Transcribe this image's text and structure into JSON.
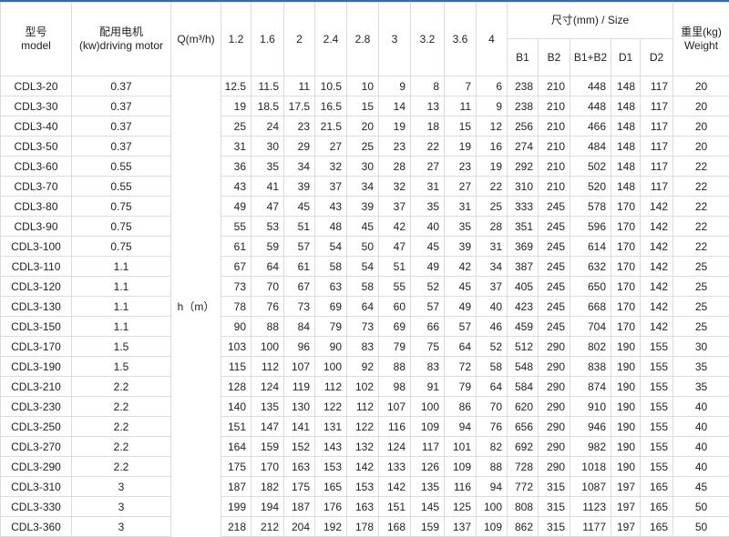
{
  "header": {
    "model_cn": "型号",
    "model_en": "model",
    "motor_cn": "配用电机",
    "motor_en": "(kw)driving motor",
    "flow_label": "Q(m³/h)",
    "flows": [
      "1.2",
      "1.6",
      "2",
      "2.4",
      "2.8",
      "3",
      "3.2",
      "3.6",
      "4"
    ],
    "size_label": "尺寸(mm) / Size",
    "size_cols": [
      "B1",
      "B2",
      "B1+B2",
      "D1",
      "D2"
    ],
    "weight_cn": "重里(kg)",
    "weight_en": "Weight",
    "head_label": "h（m）"
  },
  "rows": [
    [
      "CDL3-20",
      "0.37",
      "12.5",
      "11.5",
      "11",
      "10.5",
      "10",
      "9",
      "8",
      "7",
      "6",
      "238",
      "210",
      "448",
      "148",
      "117",
      "20"
    ],
    [
      "CDL3-30",
      "0.37",
      "19",
      "18.5",
      "17.5",
      "16.5",
      "15",
      "14",
      "13",
      "11",
      "9",
      "238",
      "210",
      "448",
      "148",
      "117",
      "20"
    ],
    [
      "CDL3-40",
      "0.37",
      "25",
      "24",
      "23",
      "21.5",
      "20",
      "19",
      "18",
      "15",
      "12",
      "256",
      "210",
      "466",
      "148",
      "117",
      "20"
    ],
    [
      "CDL3-50",
      "0.37",
      "31",
      "30",
      "29",
      "27",
      "25",
      "23",
      "22",
      "19",
      "16",
      "274",
      "210",
      "484",
      "148",
      "117",
      "20"
    ],
    [
      "CDL3-60",
      "0.55",
      "36",
      "35",
      "34",
      "32",
      "30",
      "28",
      "27",
      "23",
      "19",
      "292",
      "210",
      "502",
      "148",
      "117",
      "22"
    ],
    [
      "CDL3-70",
      "0.55",
      "43",
      "41",
      "39",
      "37",
      "34",
      "32",
      "31",
      "27",
      "22",
      "310",
      "210",
      "520",
      "148",
      "117",
      "22"
    ],
    [
      "CDL3-80",
      "0.75",
      "49",
      "47",
      "45",
      "43",
      "39",
      "37",
      "35",
      "31",
      "25",
      "333",
      "245",
      "578",
      "170",
      "142",
      "22"
    ],
    [
      "CDL3-90",
      "0.75",
      "55",
      "53",
      "51",
      "48",
      "45",
      "42",
      "40",
      "35",
      "28",
      "351",
      "245",
      "596",
      "170",
      "142",
      "22"
    ],
    [
      "CDL3-100",
      "0.75",
      "61",
      "59",
      "57",
      "54",
      "50",
      "47",
      "45",
      "39",
      "31",
      "369",
      "245",
      "614",
      "170",
      "142",
      "22"
    ],
    [
      "CDL3-110",
      "1.1",
      "67",
      "64",
      "61",
      "58",
      "54",
      "51",
      "49",
      "42",
      "34",
      "387",
      "245",
      "632",
      "170",
      "142",
      "25"
    ],
    [
      "CDL3-120",
      "1.1",
      "73",
      "70",
      "67",
      "63",
      "58",
      "55",
      "52",
      "45",
      "37",
      "405",
      "245",
      "650",
      "170",
      "142",
      "25"
    ],
    [
      "CDL3-130",
      "1.1",
      "78",
      "76",
      "73",
      "69",
      "64",
      "60",
      "57",
      "49",
      "40",
      "423",
      "245",
      "668",
      "170",
      "142",
      "25"
    ],
    [
      "CDL3-150",
      "1.1",
      "90",
      "88",
      "84",
      "79",
      "73",
      "69",
      "66",
      "57",
      "46",
      "459",
      "245",
      "704",
      "170",
      "142",
      "25"
    ],
    [
      "CDL3-170",
      "1.5",
      "103",
      "100",
      "96",
      "90",
      "83",
      "79",
      "75",
      "64",
      "52",
      "512",
      "290",
      "802",
      "190",
      "155",
      "30"
    ],
    [
      "CDL3-190",
      "1.5",
      "115",
      "112",
      "107",
      "100",
      "92",
      "88",
      "83",
      "72",
      "58",
      "548",
      "290",
      "838",
      "190",
      "155",
      "35"
    ],
    [
      "CDL3-210",
      "2.2",
      "128",
      "124",
      "119",
      "112",
      "102",
      "98",
      "91",
      "79",
      "64",
      "584",
      "290",
      "874",
      "190",
      "155",
      "35"
    ],
    [
      "CDL3-230",
      "2.2",
      "140",
      "135",
      "130",
      "122",
      "112",
      "107",
      "100",
      "86",
      "70",
      "620",
      "290",
      "910",
      "190",
      "155",
      "40"
    ],
    [
      "CDL3-250",
      "2.2",
      "151",
      "147",
      "141",
      "131",
      "122",
      "116",
      "109",
      "94",
      "76",
      "656",
      "290",
      "946",
      "190",
      "155",
      "40"
    ],
    [
      "CDL3-270",
      "2.2",
      "164",
      "159",
      "152",
      "143",
      "132",
      "124",
      "117",
      "101",
      "82",
      "692",
      "290",
      "982",
      "190",
      "155",
      "40"
    ],
    [
      "CDL3-290",
      "2.2",
      "175",
      "170",
      "163",
      "153",
      "142",
      "133",
      "126",
      "109",
      "88",
      "728",
      "290",
      "1018",
      "190",
      "155",
      "40"
    ],
    [
      "CDL3-310",
      "3",
      "187",
      "182",
      "175",
      "165",
      "153",
      "142",
      "135",
      "116",
      "94",
      "772",
      "315",
      "1087",
      "197",
      "165",
      "45"
    ],
    [
      "CDL3-330",
      "3",
      "199",
      "194",
      "187",
      "176",
      "163",
      "151",
      "145",
      "125",
      "100",
      "808",
      "315",
      "1123",
      "197",
      "165",
      "50"
    ],
    [
      "CDL3-360",
      "3",
      "218",
      "212",
      "204",
      "192",
      "178",
      "168",
      "159",
      "137",
      "109",
      "862",
      "315",
      "1177",
      "197",
      "165",
      "50"
    ]
  ]
}
